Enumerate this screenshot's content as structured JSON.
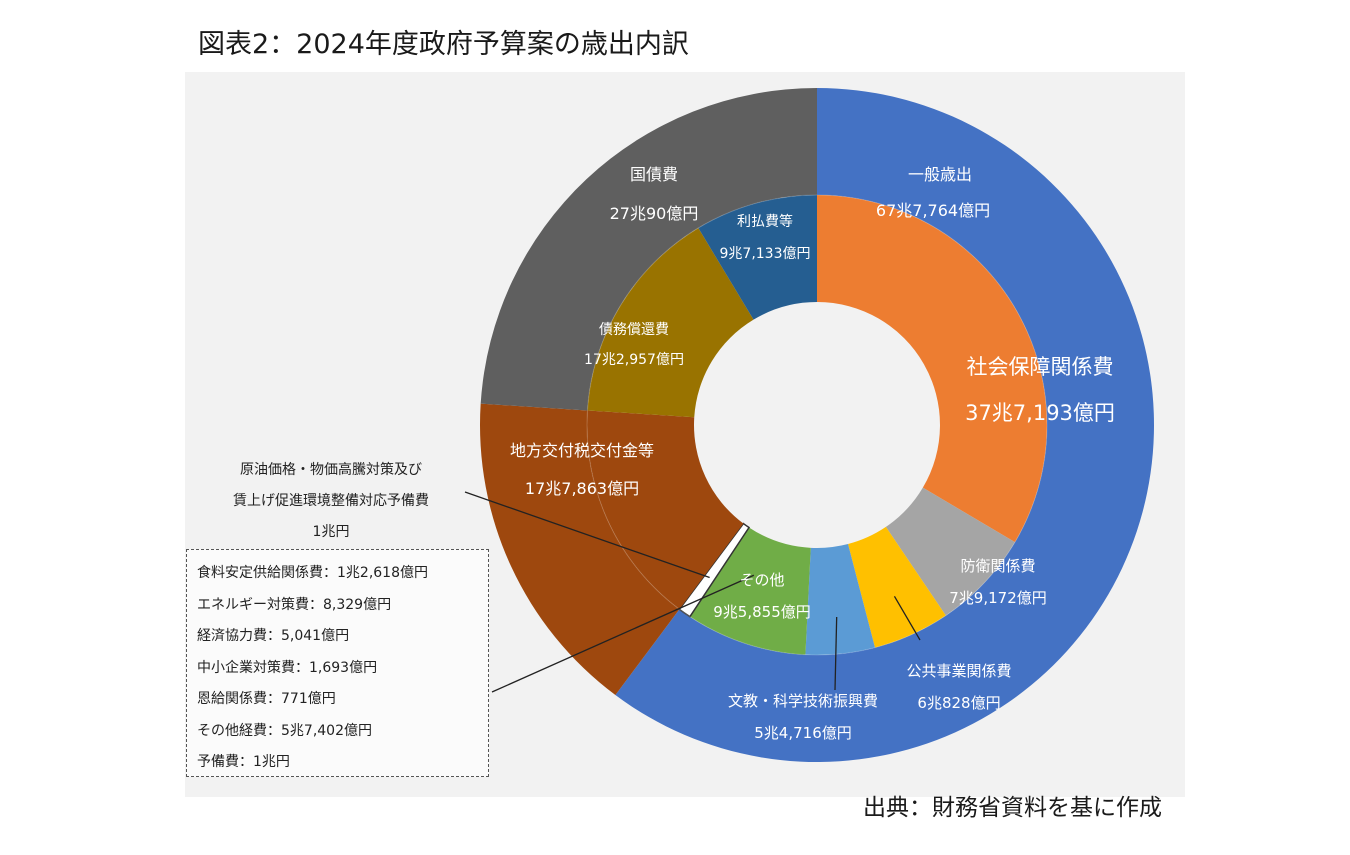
{
  "title": "図表2：2024年度政府予算案の歳出内訳",
  "source": "出典：財務省資料を基に作成",
  "colors": {
    "general": "#4472C4",
    "debt": "#5F5F5F",
    "local": "#9E480E",
    "social": "#ED7D31",
    "defense": "#A5A5A5",
    "public_works": "#FFC000",
    "education": "#5B9BD5",
    "other": "#70AD47",
    "reserve": "#FFFFFF",
    "redemption": "#997300",
    "interest": "#255E91"
  },
  "chart_data": {
    "type": "pie",
    "subtype": "double-donut",
    "unit": "億円",
    "outer_ring": [
      {
        "key": "general",
        "name": "一般歳出",
        "value": 677764,
        "value_label": "67兆7,764億円"
      },
      {
        "key": "local",
        "name": "地方交付税交付金等",
        "value": 177863,
        "value_label": "17兆7,863億円"
      },
      {
        "key": "debt",
        "name": "国債費",
        "value": 270090,
        "value_label": "27兆90億円"
      }
    ],
    "inner_ring": [
      {
        "key": "social",
        "name": "社会保障関係費",
        "value": 377193,
        "value_label": "37兆7,193億円"
      },
      {
        "key": "defense",
        "name": "防衛関係費",
        "value": 79172,
        "value_label": "7兆9,172億円"
      },
      {
        "key": "public_works",
        "name": "公共事業関係費",
        "value": 60828,
        "value_label": "6兆828億円"
      },
      {
        "key": "education",
        "name": "文教・科学技術振興費",
        "value": 54716,
        "value_label": "5兆4,716億円"
      },
      {
        "key": "other",
        "name": "その他",
        "value": 95855,
        "value_label": "9兆5,855億円"
      },
      {
        "key": "reserve",
        "name": "原油価格・物価高騰対策及び賃上げ促進環境整備対応予備費",
        "value": 10000,
        "value_label": "1兆円"
      },
      {
        "key": "local_inner",
        "name": "",
        "value": 177863,
        "value_label": ""
      },
      {
        "key": "redemption",
        "name": "債務償還費",
        "value": 172957,
        "value_label": "17兆2,957億円"
      },
      {
        "key": "interest",
        "name": "利払費等",
        "value": 97133,
        "value_label": "9兆7,133億円"
      }
    ],
    "annotation": {
      "line1": "原油価格・物価高騰対策及び",
      "line2": "賃上げ促進環境整備対応予備費",
      "line3": "1兆円"
    },
    "other_breakdown": [
      "食料安定供給関係費：1兆2,618億円",
      "エネルギー対策費：8,329億円",
      "経済協力費：5,041億円",
      "中小企業対策費：1,693億円",
      "恩給関係費：771億円",
      "その他経費：5兆7,402億円",
      "予備費：1兆円"
    ]
  }
}
